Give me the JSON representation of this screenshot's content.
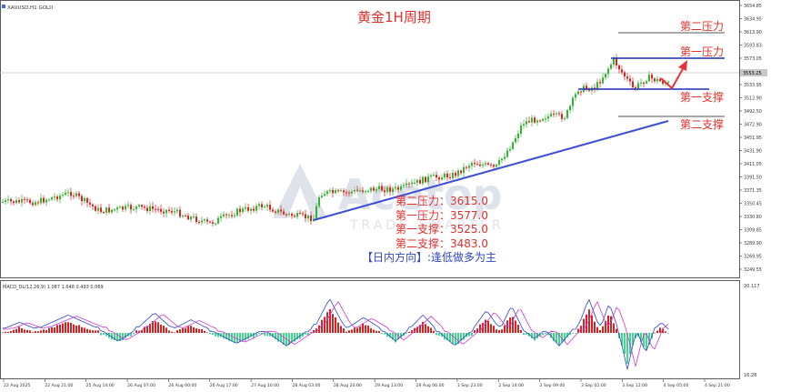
{
  "symbol_label": "XAUUSD,H1 GOLD",
  "title": "黄金1H周期",
  "levels": {
    "r2": {
      "label": "第二压力",
      "price": 3615.0
    },
    "r1": {
      "label": "第一压力",
      "price": 3577.0
    },
    "s1": {
      "label": "第一支撑",
      "price": 3525.0
    },
    "s2": {
      "label": "第二支撑",
      "price": 3483.0
    }
  },
  "watermark": {
    "brand": "Acetop",
    "sub": "TRADE SMARTER"
  },
  "info_lines": [
    "第二压力：3615.0",
    "第一压力：3577.0",
    "第一支撑：3525.0",
    "第二支撑：3483.0"
  ],
  "direction_text": "【日内方向】:逢低做多为主",
  "macd_label": "MACD_DL(12,26,9) 1.087 1.648 0.493 0.069",
  "price_axis": [
    "3654.85",
    "3634.95",
    "3613.90",
    "3593.83",
    "3573.05",
    "3555.50",
    "3533.95",
    "3512.90",
    "3492.50",
    "3472.90",
    "3451.95",
    "3431.90",
    "3411.05",
    "3391.50",
    "3371.35",
    "3350.45",
    "3330.80",
    "3309.85",
    "3289.90",
    "3269.95",
    "3249.55"
  ],
  "current_price": "3553.25",
  "macd_axis": {
    "top": "20.117",
    "bottom": "16.28"
  },
  "time_axis": [
    "22 Aug 2025",
    "22 Aug 21:00",
    "25 Aug 14:00",
    "26 Aug 07:00",
    "26 Aug 00:00",
    "26 Aug 17:00",
    "27 Aug 10:00",
    "28 Aug 03:00",
    "28 Aug 20:00",
    "29 Aug 13:00",
    "29 Aug 06:00",
    "1 Sep 23:00",
    "2 Sep 14:00",
    "2 Sep 09:00",
    "3 Sep 02:00",
    "3 Sep 12:00",
    "4 Sep 05:00",
    "4 Sep 21:00"
  ],
  "colors": {
    "bull": "#2fb82f",
    "bear": "#e0201e",
    "trend": "#3d4fd6",
    "level_line": "#1f2db5",
    "label_red": "#e1302b",
    "arrow": "#e8323e",
    "title": "#e1302b",
    "direction": "#2f46c8",
    "macd_main": "#3045c9",
    "macd_signal": "#cc38d6",
    "macd_pos": "#e0201e",
    "macd_neg": "#3fd88c"
  }
}
